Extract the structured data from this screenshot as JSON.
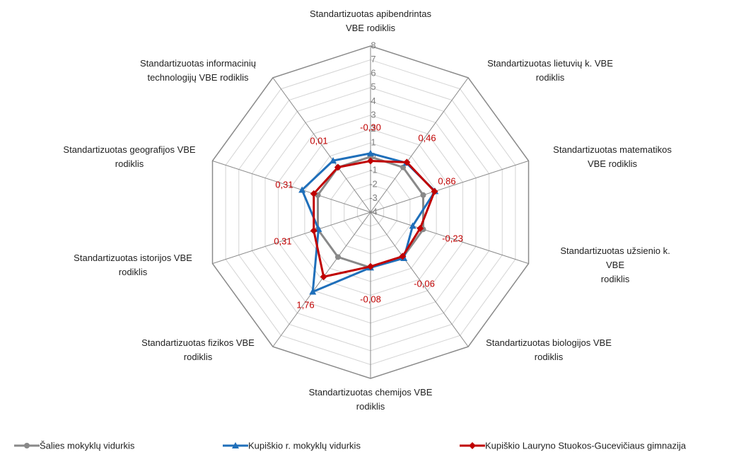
{
  "chart_data": {
    "type": "radar",
    "categories": [
      "Standartizuotas apibendrintas\nVBE rodiklis",
      "Standartizuotas lietuvių k. VBE\nrodiklis",
      "Standartizuotas matematikos\nVBE rodiklis",
      "Standartizuotas užsienio k. VBE\nrodiklis",
      "Standartizuotas biologijos VBE\nrodiklis",
      "Standartizuotas chemijos  VBE\nrodiklis",
      "Standartizuotas fizikos  VBE\nrodiklis",
      "Standartizuotas istorijos VBE\nrodiklis",
      "Standartizuotas geografijos VBE\nrodiklis",
      "Standartizuotas informacinių\ntechnologijų VBE rodiklis"
    ],
    "rlim": [
      -4,
      8
    ],
    "rticks": [
      -4,
      -3,
      -2,
      -1,
      0,
      1,
      2,
      3,
      4,
      5,
      6,
      7,
      8
    ],
    "grid": true,
    "legend": "bottom",
    "series": [
      {
        "name": "Šalies mokyklų vidurkis",
        "color": "#898989",
        "marker": "circle",
        "values": [
          0,
          0,
          0,
          0,
          0,
          0,
          0,
          0,
          0,
          0
        ]
      },
      {
        "name": "Kupiškio r. mokyklų vidurkis",
        "color": "#1f6fba",
        "marker": "triangle",
        "values": [
          0.25,
          0.4,
          0.9,
          -0.8,
          0.1,
          0,
          3.1,
          -0.05,
          1.2,
          0.6
        ]
      },
      {
        "name": "Kupiškio Lauryno Stuokos-Gucevičiaus gimnazija",
        "color": "#c00000",
        "marker": "diamond",
        "values": [
          -0.3,
          0.46,
          0.86,
          -0.23,
          -0.06,
          -0.08,
          1.76,
          0.31,
          0.31,
          0.01
        ],
        "value_labels": [
          "-0,30",
          "0,46",
          "0,86",
          "-0,23",
          "-0,06",
          "-0,08",
          "1,76",
          "0,31",
          "0,31",
          "0,01"
        ]
      }
    ]
  }
}
